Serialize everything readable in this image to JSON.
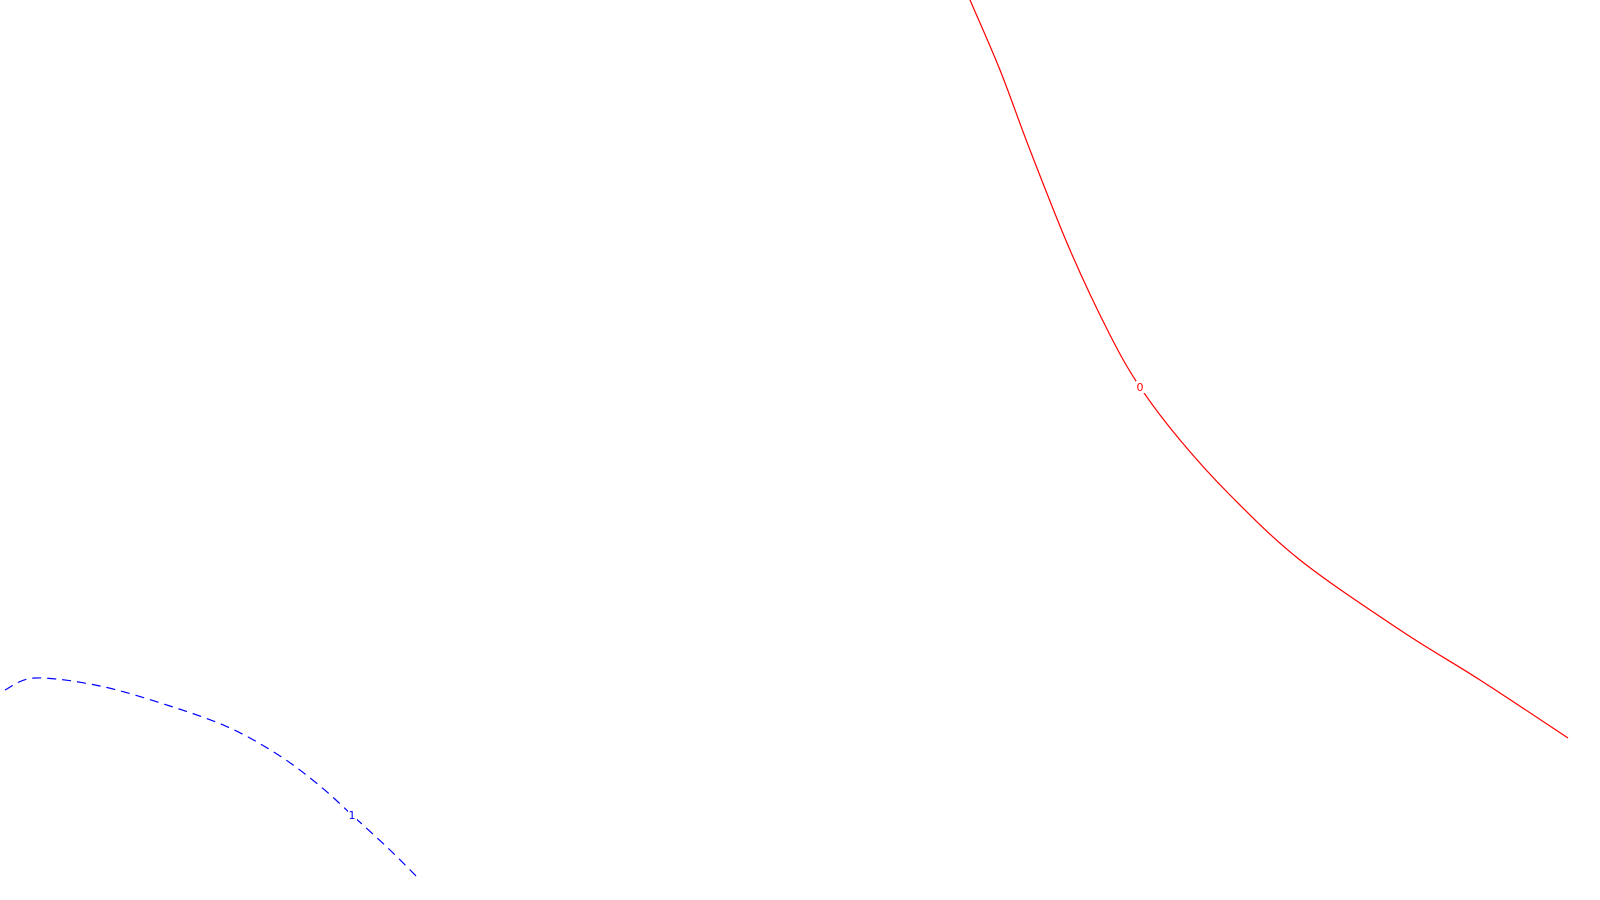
{
  "colors": {
    "background": "#ffffff",
    "red_contour": "#ff0000",
    "blue_contour": "#0000ff"
  },
  "chart_data": {
    "type": "line",
    "title": "",
    "xlabel": "",
    "ylabel": "",
    "grid": false,
    "legend": "none",
    "series": [
      {
        "label": "0",
        "color": "#ff0000",
        "style": "solid",
        "points": [
          [
            970,
            0
          ],
          [
            1000,
            70
          ],
          [
            1030,
            150
          ],
          [
            1070,
            250
          ],
          [
            1110,
            335
          ],
          [
            1140,
            387
          ],
          [
            1180,
            440
          ],
          [
            1230,
            495
          ],
          [
            1300,
            560
          ],
          [
            1400,
            630
          ],
          [
            1480,
            680
          ],
          [
            1568,
            738
          ]
        ]
      },
      {
        "label": "1",
        "color": "#0000ff",
        "style": "dashed",
        "points": [
          [
            5,
            690
          ],
          [
            35,
            678
          ],
          [
            100,
            686
          ],
          [
            170,
            706
          ],
          [
            230,
            728
          ],
          [
            280,
            756
          ],
          [
            320,
            786
          ],
          [
            352,
            815
          ],
          [
            390,
            850
          ],
          [
            420,
            880
          ]
        ]
      }
    ]
  }
}
